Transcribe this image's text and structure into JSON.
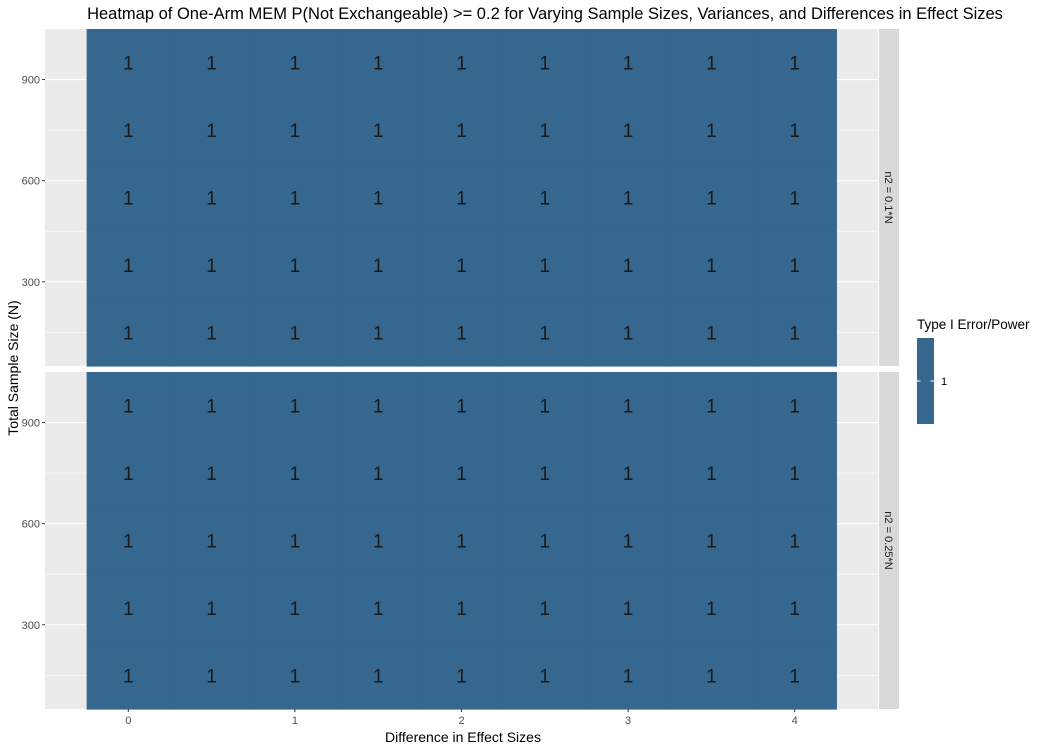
{
  "chart_data": {
    "type": "heatmap",
    "title": "Heatmap of One-Arm MEM P(Not Exchangeable) >= 0.2 for Varying Sample Sizes, Variances, and Differences in Effect Sizes",
    "xlabel": "Difference in Effect Sizes",
    "ylabel": "Total Sample Size (N)",
    "x": [
      0,
      0.5,
      1,
      1.5,
      2,
      2.5,
      3,
      3.5,
      4
    ],
    "y": [
      150,
      350,
      550,
      750,
      950
    ],
    "xlim": [
      -0.5,
      4.5
    ],
    "ylim": [
      50,
      1050
    ],
    "x_ticks": [
      0,
      1,
      2,
      3,
      4
    ],
    "y_ticks": [
      300,
      600,
      900
    ],
    "grid": true,
    "legend": {
      "title": "Type I Error/Power",
      "position": "right",
      "values": [
        1
      ],
      "color": "#35678f"
    },
    "facets": [
      {
        "label": "n2 = 0.1*N",
        "values": [
          [
            1,
            1,
            1,
            1,
            1,
            1,
            1,
            1,
            1
          ],
          [
            1,
            1,
            1,
            1,
            1,
            1,
            1,
            1,
            1
          ],
          [
            1,
            1,
            1,
            1,
            1,
            1,
            1,
            1,
            1
          ],
          [
            1,
            1,
            1,
            1,
            1,
            1,
            1,
            1,
            1
          ],
          [
            1,
            1,
            1,
            1,
            1,
            1,
            1,
            1,
            1
          ]
        ]
      },
      {
        "label": "n2 = 0.25*N",
        "values": [
          [
            1,
            1,
            1,
            1,
            1,
            1,
            1,
            1,
            1
          ],
          [
            1,
            1,
            1,
            1,
            1,
            1,
            1,
            1,
            1
          ],
          [
            1,
            1,
            1,
            1,
            1,
            1,
            1,
            1,
            1
          ],
          [
            1,
            1,
            1,
            1,
            1,
            1,
            1,
            1,
            1
          ],
          [
            1,
            1,
            1,
            1,
            1,
            1,
            1,
            1,
            1
          ]
        ]
      }
    ]
  }
}
